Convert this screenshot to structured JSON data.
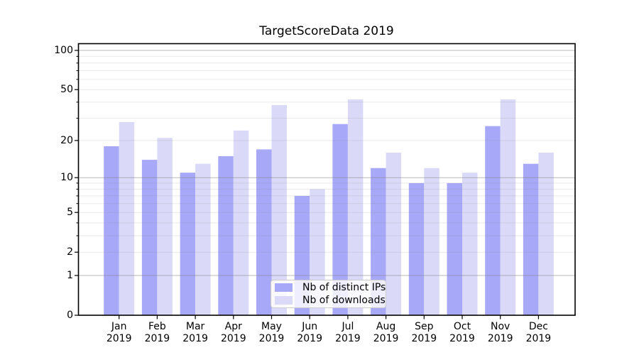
{
  "title": "TargetScoreData 2019",
  "chart_data": {
    "type": "bar",
    "title": "TargetScoreData 2019",
    "categories": [
      "Jan 2019",
      "Feb 2019",
      "Mar 2019",
      "Apr 2019",
      "May 2019",
      "Jun 2019",
      "Jul 2019",
      "Aug 2019",
      "Sep 2019",
      "Oct 2019",
      "Nov 2019",
      "Dec 2019"
    ],
    "series": [
      {
        "name": "Nb of distinct IPs",
        "color": "#a8a8f8",
        "values": [
          18,
          14,
          11,
          15,
          17,
          7,
          27,
          12,
          9,
          9,
          26,
          13
        ]
      },
      {
        "name": "Nb of downloads",
        "color": "#dadaf8",
        "values": [
          28,
          21,
          13,
          24,
          38,
          8,
          42,
          16,
          12,
          11,
          42,
          16
        ]
      }
    ],
    "xlabel": "",
    "ylabel": "",
    "y_scale": "log1p",
    "ylim": [
      0,
      113
    ],
    "y_tick_labels": [
      "0",
      "1",
      "2",
      "5",
      "10",
      "20",
      "50",
      "100"
    ],
    "y_ticks_labeled": [
      0,
      1,
      2,
      5,
      10,
      20,
      50,
      100
    ],
    "y_grid_major": [
      1,
      10,
      100
    ],
    "y_grid_minor": [
      2,
      3,
      4,
      5,
      6,
      7,
      8,
      9,
      20,
      30,
      40,
      50,
      60,
      70,
      80,
      90
    ],
    "y_ticks_minor": [
      3,
      4,
      6,
      7,
      8,
      9,
      30,
      40,
      60,
      70,
      80,
      90
    ],
    "grid": "on",
    "legend_position": "lower center"
  },
  "colors": {
    "series_dark": "#a8a8f8",
    "series_light": "#dadaf8",
    "grid_major": "#b0b0b0",
    "grid_minor": "#e9e9e9",
    "axis": "#000000"
  }
}
